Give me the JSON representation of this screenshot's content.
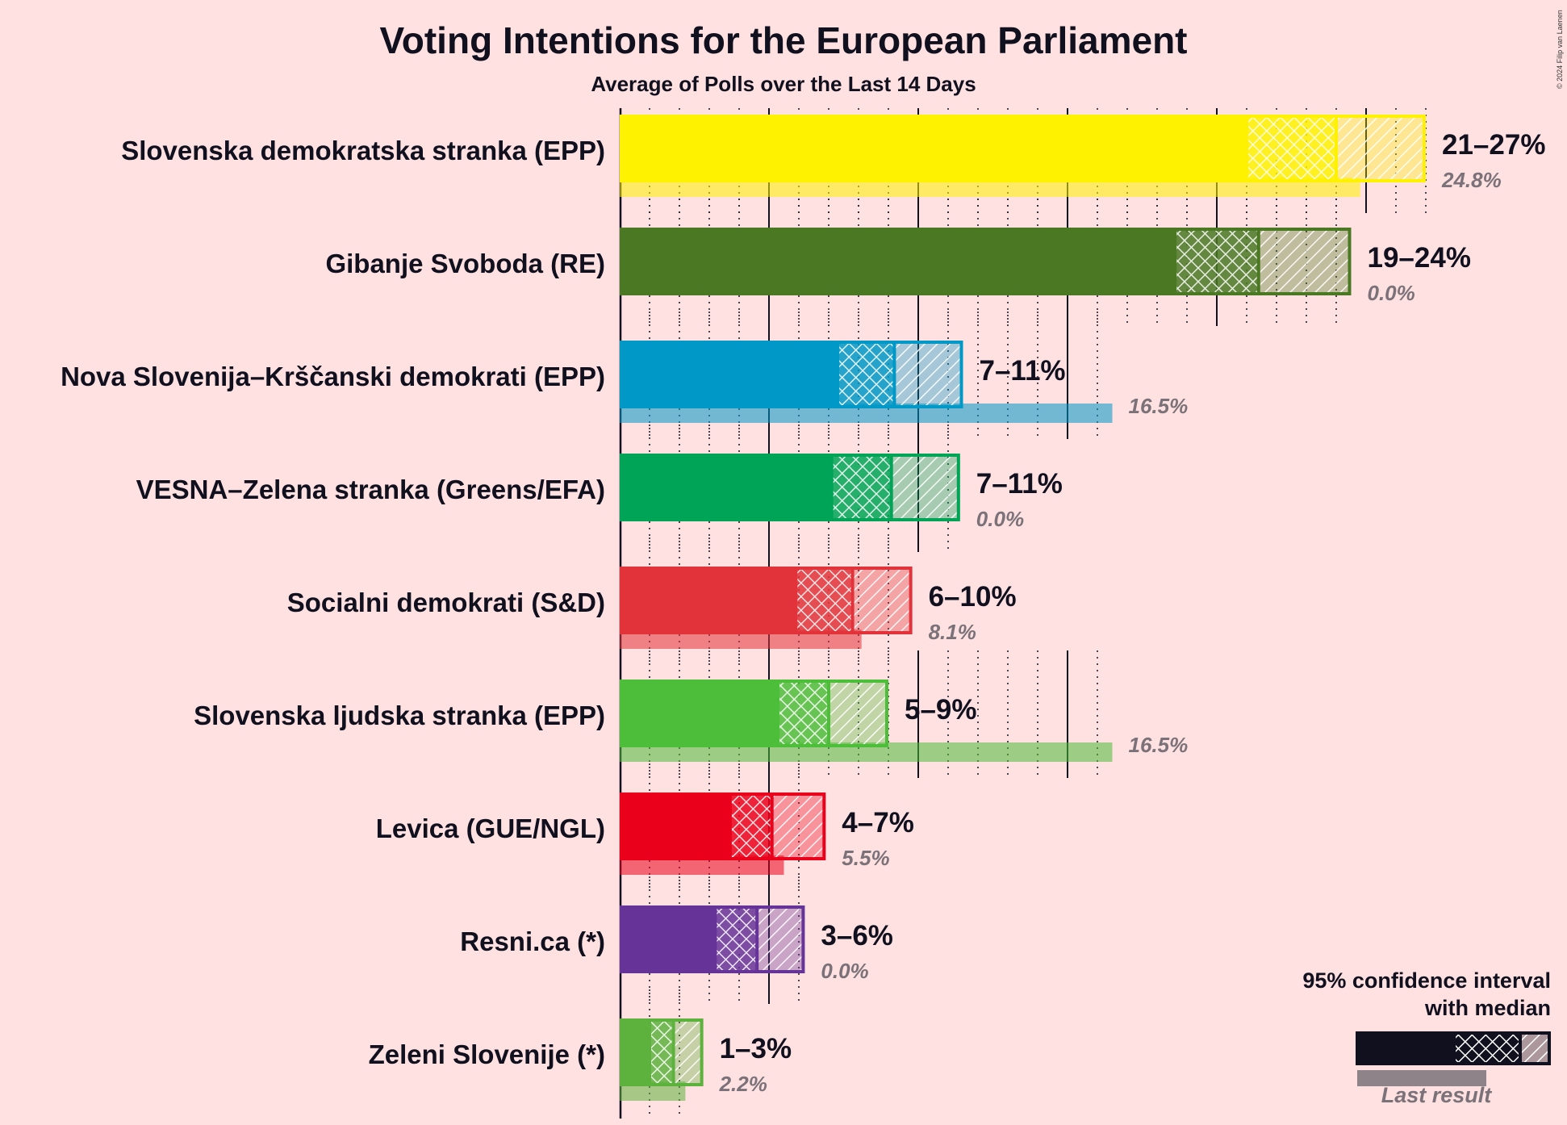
{
  "chart_data": {
    "type": "bar",
    "title": "Voting Intentions for the European Parliament",
    "subtitle": "Average of Polls over the Last 14 Days",
    "xlim": [
      0,
      27
    ],
    "grid": true,
    "legend_position": "bottom-right",
    "legend": {
      "title_line1": "95% confidence interval",
      "title_line2": "with median",
      "last_result": "Last result"
    },
    "copyright": "© 2024 Filip van Laenen",
    "categories": [
      "Slovenska demokratska stranka (EPP)",
      "Gibanje Svoboda (RE)",
      "Nova Slovenija–Krščanski demokrati (EPP)",
      "VESNA–Zelena stranka (Greens/EFA)",
      "Socialni demokrati (S&D)",
      "Slovenska ljudska stranka (EPP)",
      "Levica (GUE/NGL)",
      "Resni.ca (*)",
      "Zeleni Slovenije (*)"
    ],
    "series": [
      {
        "name": "Slovenska demokratska stranka (EPP)",
        "color": "#FFF200",
        "low": 21.0,
        "median": 24.0,
        "high": 27.0,
        "range_label": "21–27%",
        "last_result": 24.8,
        "last_label": "24.8%"
      },
      {
        "name": "Gibanje Svoboda (RE)",
        "color": "#4A7823",
        "low": 18.6,
        "median": 21.4,
        "high": 24.5,
        "range_label": "19–24%",
        "last_result": 0.0,
        "last_label": "0.0%"
      },
      {
        "name": "Nova Slovenija–Krščanski demokrati (EPP)",
        "color": "#0098C6",
        "low": 7.3,
        "median": 9.2,
        "high": 11.5,
        "range_label": "7–11%",
        "last_result": 16.5,
        "last_label": "16.5%"
      },
      {
        "name": "VESNA–Zelena stranka (Greens/EFA)",
        "color": "#00A456",
        "low": 7.1,
        "median": 9.1,
        "high": 11.4,
        "range_label": "7–11%",
        "last_result": 0.0,
        "last_label": "0.0%"
      },
      {
        "name": "Socialni demokrati (S&D)",
        "color": "#E2333A",
        "low": 5.9,
        "median": 7.8,
        "high": 9.8,
        "range_label": "6–10%",
        "last_result": 8.1,
        "last_label": "8.1%"
      },
      {
        "name": "Slovenska ljudska stranka (EPP)",
        "color": "#4CBE39",
        "low": 5.3,
        "median": 7.0,
        "high": 9.0,
        "range_label": "5–9%",
        "last_result": 16.5,
        "last_label": "16.5%"
      },
      {
        "name": "Levica (GUE/NGL)",
        "color": "#EB001B",
        "low": 3.7,
        "median": 5.1,
        "high": 6.9,
        "range_label": "4–7%",
        "last_result": 5.5,
        "last_label": "5.5%"
      },
      {
        "name": "Resni.ca (*)",
        "color": "#663399",
        "low": 3.2,
        "median": 4.6,
        "high": 6.2,
        "range_label": "3–6%",
        "last_result": 0.0,
        "last_label": "0.0%"
      },
      {
        "name": "Zeleni Slovenije (*)",
        "color": "#5DB23D",
        "low": 1.0,
        "median": 1.8,
        "high": 2.8,
        "range_label": "1–3%",
        "last_result": 2.2,
        "last_label": "2.2%"
      }
    ]
  }
}
